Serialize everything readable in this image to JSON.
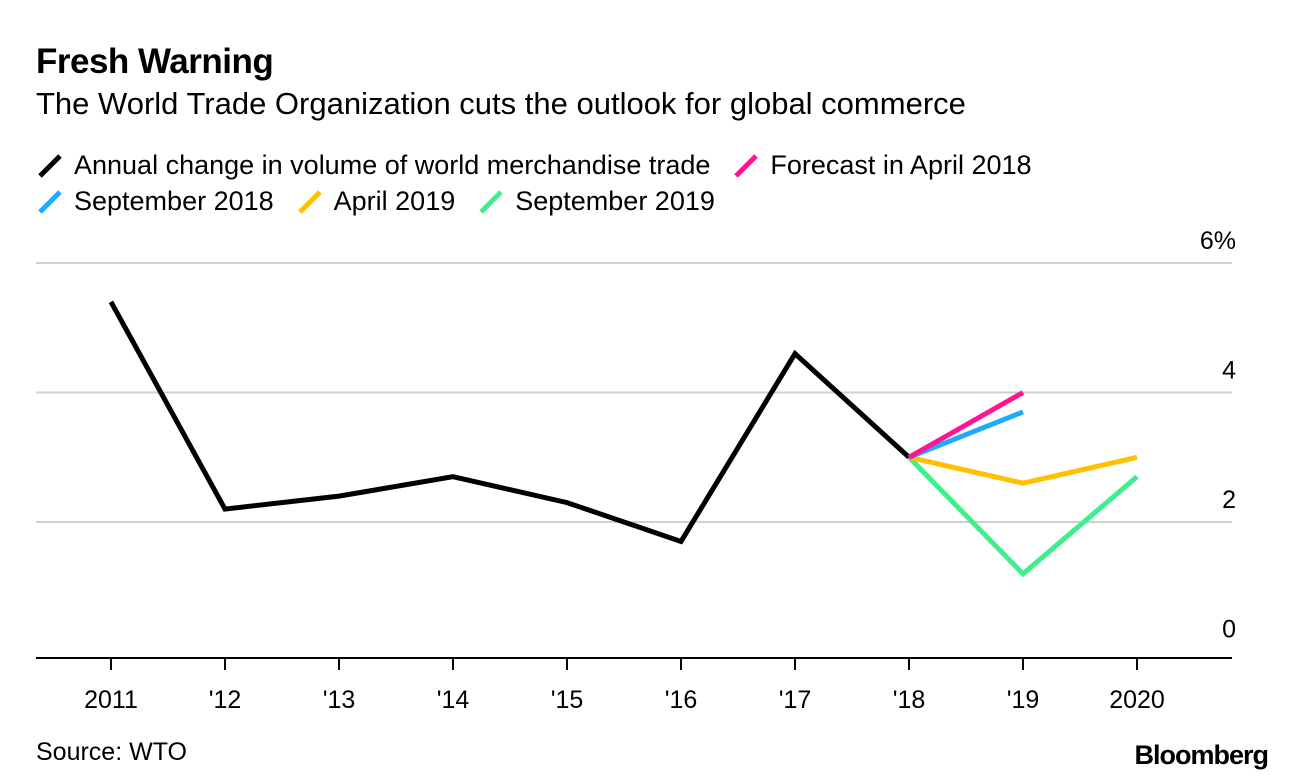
{
  "title": "Fresh Warning",
  "subtitle": "The World Trade Organization cuts the outlook for global commerce",
  "source": "Source: WTO",
  "brand": "Bloomberg",
  "legend": [
    {
      "label": "Annual change in volume of world merchandise trade",
      "color": "#000000"
    },
    {
      "label": "Forecast in April 2018",
      "color": "#ff1493"
    },
    {
      "label": "September 2018",
      "color": "#1fa9ff"
    },
    {
      "label": "April 2019",
      "color": "#ffc000"
    },
    {
      "label": "September 2019",
      "color": "#3eef8c"
    }
  ],
  "chart_data": {
    "type": "line",
    "x": [
      "2011",
      "'12",
      "'13",
      "'14",
      "'15",
      "'16",
      "'17",
      "'18",
      "'19",
      "2020"
    ],
    "y_ticks": [
      "0",
      "2",
      "4",
      "6%"
    ],
    "ylim": [
      -0.1,
      6
    ],
    "grid": true,
    "legend_position": "top",
    "series": [
      {
        "name": "Annual change in volume of world merchandise trade",
        "color": "#000000",
        "points": [
          [
            "2011",
            5.4
          ],
          [
            "'12",
            2.2
          ],
          [
            "'13",
            2.4
          ],
          [
            "'14",
            2.7
          ],
          [
            "'15",
            2.3
          ],
          [
            "'16",
            1.7
          ],
          [
            "'17",
            4.6
          ],
          [
            "'18",
            3.0
          ]
        ]
      },
      {
        "name": "Forecast in April 2018",
        "color": "#ff1493",
        "points": [
          [
            "'18",
            3.0
          ],
          [
            "'19",
            4.0
          ]
        ]
      },
      {
        "name": "September 2018",
        "color": "#1fa9ff",
        "points": [
          [
            "'18",
            3.0
          ],
          [
            "'19",
            3.7
          ]
        ]
      },
      {
        "name": "April 2019",
        "color": "#ffc000",
        "points": [
          [
            "'18",
            3.0
          ],
          [
            "'19",
            2.6
          ],
          [
            "2020",
            3.0
          ]
        ]
      },
      {
        "name": "September 2019",
        "color": "#3eef8c",
        "points": [
          [
            "'18",
            3.0
          ],
          [
            "'19",
            1.2
          ],
          [
            "2020",
            2.7
          ]
        ]
      }
    ]
  }
}
